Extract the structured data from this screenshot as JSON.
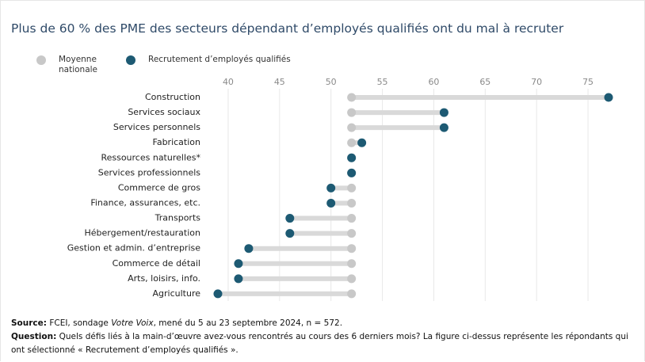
{
  "chart_data": {
    "type": "dumbbell",
    "title": "Plus de 60 % des PME des secteurs dépendant d’employés qualifiés ont du mal à recruter",
    "categories": [
      "Construction",
      "Services sociaux",
      "Services personnels",
      "Fabrication",
      "Ressources naturelles*",
      "Services professionnels",
      "Commerce de gros",
      "Finance, assurances, etc.",
      "Transports",
      "Hébergement/restauration",
      "Gestion et admin. d’entreprise",
      "Commerce de détail",
      "Arts, loisirs, info.",
      "Agriculture"
    ],
    "series": [
      {
        "name": "Moyenne nationale",
        "color": "#c8c8c8",
        "values": [
          52,
          52,
          52,
          52,
          52,
          52,
          52,
          52,
          52,
          52,
          52,
          52,
          52,
          52
        ]
      },
      {
        "name": "Recrutement d’employés qualifiés",
        "color": "#1d5a73",
        "values": [
          77,
          61,
          61,
          53,
          52,
          52,
          50,
          50,
          46,
          46,
          42,
          41,
          41,
          39
        ]
      }
    ],
    "xlim": [
      38,
      78
    ],
    "xticks": [
      40,
      45,
      50,
      55,
      60,
      65,
      70,
      75
    ],
    "grid": true
  },
  "footer": {
    "source_label": "Source:",
    "source_parts": [
      " FCEI, sondage ",
      "Votre Voix",
      ", mené du 5 au 23 septembre 2024, n = 572."
    ],
    "question_label": "Question:",
    "question_text": " Quels défis liés à la main-d’œuvre avez-vous rencontrés au cours des 6 derniers mois? La figure ci-dessus représente les répondants qui ont sélectionné « Recrutement d’employés qualifiés »."
  }
}
